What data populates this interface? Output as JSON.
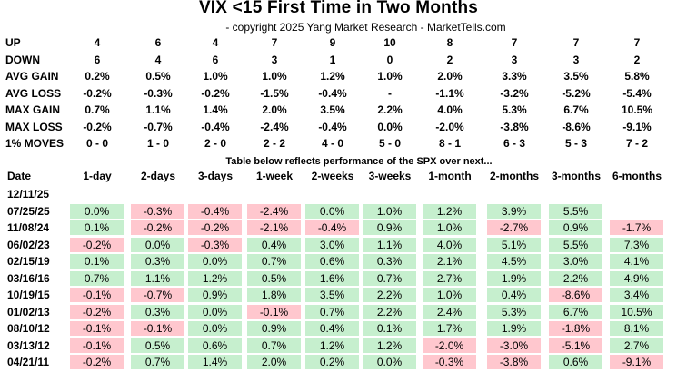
{
  "title": "VIX <15 First Time in Two Months",
  "subtitle": "- copyright 2025 Yang Market Research - MarketTells.com",
  "colors": {
    "positive_fill": "#c6efce",
    "negative_fill": "#ffc7ce"
  },
  "chart_data": {
    "type": "table",
    "summary": {
      "rows": [
        {
          "label": "UP",
          "values": [
            "4",
            "6",
            "4",
            "7",
            "9",
            "10",
            "8",
            "7",
            "7",
            "7"
          ]
        },
        {
          "label": "DOWN",
          "values": [
            "6",
            "4",
            "6",
            "3",
            "1",
            "0",
            "2",
            "3",
            "3",
            "2"
          ]
        },
        {
          "label": "AVG GAIN",
          "values": [
            "0.2%",
            "0.5%",
            "1.0%",
            "1.0%",
            "1.2%",
            "1.0%",
            "2.0%",
            "3.3%",
            "3.5%",
            "5.8%"
          ]
        },
        {
          "label": "AVG LOSS",
          "values": [
            "-0.2%",
            "-0.3%",
            "-0.2%",
            "-1.5%",
            "-0.4%",
            "-",
            "-1.1%",
            "-3.2%",
            "-5.2%",
            "-5.4%"
          ]
        },
        {
          "label": "MAX GAIN",
          "values": [
            "0.7%",
            "1.1%",
            "1.4%",
            "2.0%",
            "3.5%",
            "2.2%",
            "4.0%",
            "5.3%",
            "6.7%",
            "10.5%"
          ]
        },
        {
          "label": "MAX LOSS",
          "values": [
            "-0.2%",
            "-0.7%",
            "-0.4%",
            "-2.4%",
            "-0.4%",
            "0.0%",
            "-2.0%",
            "-3.8%",
            "-8.6%",
            "-9.1%"
          ]
        },
        {
          "label": "1% MOVES",
          "values": [
            "0 - 0",
            "1 - 0",
            "2 - 0",
            "2 - 2",
            "4 - 0",
            "5 - 0",
            "8 - 1",
            "6 - 3",
            "5 - 3",
            "7 - 2"
          ]
        }
      ]
    },
    "caption": "Table below reflects performance of the SPX over next...",
    "date_header": "Date",
    "columns": [
      "1-day",
      "2-days",
      "3-days",
      "1-week",
      "2-weeks",
      "3-weeks",
      "1-month",
      "2-months",
      "3-months",
      "6-months"
    ],
    "rows": [
      {
        "date": "12/11/25",
        "values": []
      },
      {
        "date": "07/25/25",
        "values": [
          0.0,
          -0.3,
          -0.4,
          -2.4,
          0.0,
          1.0,
          1.2,
          3.9,
          5.5
        ]
      },
      {
        "date": "11/08/24",
        "values": [
          0.1,
          -0.2,
          -0.2,
          -2.1,
          -0.4,
          0.9,
          1.0,
          -2.7,
          0.9,
          -1.7
        ]
      },
      {
        "date": "06/02/23",
        "values": [
          -0.2,
          0.0,
          -0.3,
          0.4,
          3.0,
          1.1,
          4.0,
          5.1,
          5.5,
          7.3
        ]
      },
      {
        "date": "02/15/19",
        "values": [
          0.1,
          0.3,
          0.0,
          0.7,
          0.6,
          0.3,
          2.1,
          4.5,
          3.0,
          4.1
        ]
      },
      {
        "date": "03/16/16",
        "values": [
          0.7,
          1.1,
          1.2,
          0.5,
          1.6,
          0.7,
          2.7,
          1.9,
          2.2,
          4.9
        ]
      },
      {
        "date": "10/19/15",
        "values": [
          -0.1,
          -0.7,
          0.9,
          1.8,
          3.5,
          2.2,
          1.0,
          0.4,
          -8.6,
          3.4
        ]
      },
      {
        "date": "01/02/13",
        "values": [
          -0.2,
          0.3,
          0.0,
          -0.1,
          0.7,
          2.2,
          2.4,
          5.3,
          6.7,
          10.5
        ]
      },
      {
        "date": "08/10/12",
        "values": [
          -0.1,
          -0.1,
          0.0,
          0.9,
          0.4,
          0.1,
          1.7,
          1.9,
          -1.8,
          8.1
        ]
      },
      {
        "date": "03/13/12",
        "values": [
          -0.1,
          0.5,
          0.6,
          0.7,
          1.2,
          1.2,
          -2.0,
          -3.0,
          -5.1,
          2.7
        ]
      },
      {
        "date": "04/21/11",
        "values": [
          -0.2,
          0.7,
          1.4,
          2.0,
          0.2,
          0.0,
          -0.3,
          -3.8,
          0.6,
          -9.1
        ]
      }
    ]
  }
}
